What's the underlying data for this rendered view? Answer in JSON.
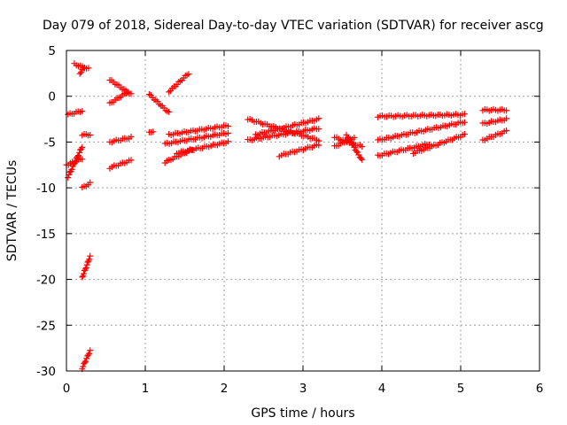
{
  "chart_data": {
    "type": "scatter",
    "title": "Day 079 of 2018, Sidereal Day-to-day VTEC variation (SDTVAR) for receiver ascg",
    "xlabel": "GPS time / hours",
    "ylabel": "SDTVAR / TECUs",
    "xlim": [
      0,
      6
    ],
    "ylim": [
      -30,
      5
    ],
    "xticks": [
      0,
      1,
      2,
      3,
      4,
      5,
      6
    ],
    "yticks": [
      5,
      0,
      -5,
      -10,
      -15,
      -20,
      -25,
      -30
    ],
    "grid": true,
    "marker": "+",
    "series_color": "#ff0000",
    "segments": [
      {
        "x0": 0.0,
        "x1": 0.2,
        "y0": -7.5,
        "y1": -6.8
      },
      {
        "x0": 0.02,
        "x1": 0.2,
        "y0": -8.8,
        "y1": -5.5
      },
      {
        "x0": 0.02,
        "x1": 0.2,
        "y0": -2.0,
        "y1": -1.6
      },
      {
        "x0": 0.1,
        "x1": 0.28,
        "y0": 3.5,
        "y1": 3.0
      },
      {
        "x0": 0.17,
        "x1": 0.23,
        "y0": 2.5,
        "y1": 3.2
      },
      {
        "x0": 0.2,
        "x1": 0.3,
        "y0": -4.2,
        "y1": -4.2
      },
      {
        "x0": 0.2,
        "x1": 0.3,
        "y0": -10.0,
        "y1": -9.5
      },
      {
        "x0": 0.2,
        "x1": 0.3,
        "y0": -19.8,
        "y1": -17.5
      },
      {
        "x0": 0.2,
        "x1": 0.3,
        "y0": -29.7,
        "y1": -27.8
      },
      {
        "x0": 0.55,
        "x1": 0.82,
        "y0": 1.8,
        "y1": 0.2
      },
      {
        "x0": 0.55,
        "x1": 0.78,
        "y0": -0.8,
        "y1": 0.5
      },
      {
        "x0": 0.55,
        "x1": 0.82,
        "y0": -5.0,
        "y1": -4.5
      },
      {
        "x0": 0.55,
        "x1": 0.82,
        "y0": -7.8,
        "y1": -7.0
      },
      {
        "x0": 1.05,
        "x1": 1.3,
        "y0": 0.2,
        "y1": -1.8
      },
      {
        "x0": 1.05,
        "x1": 1.1,
        "y0": -4.0,
        "y1": -3.8
      },
      {
        "x0": 1.3,
        "x1": 1.55,
        "y0": 0.5,
        "y1": 2.5
      },
      {
        "x0": 1.25,
        "x1": 1.6,
        "y0": -7.2,
        "y1": -5.8
      },
      {
        "x0": 1.25,
        "x1": 2.05,
        "y0": -5.2,
        "y1": -4.0
      },
      {
        "x0": 1.3,
        "x1": 2.05,
        "y0": -4.2,
        "y1": -3.2
      },
      {
        "x0": 1.4,
        "x1": 2.05,
        "y0": -6.2,
        "y1": -5.0
      },
      {
        "x0": 2.3,
        "x1": 3.2,
        "y0": -2.5,
        "y1": -4.8
      },
      {
        "x0": 2.3,
        "x1": 3.2,
        "y0": -4.8,
        "y1": -3.5
      },
      {
        "x0": 2.4,
        "x1": 3.2,
        "y0": -4.2,
        "y1": -2.5
      },
      {
        "x0": 2.7,
        "x1": 3.2,
        "y0": -6.5,
        "y1": -5.3
      },
      {
        "x0": 3.4,
        "x1": 3.75,
        "y0": -4.5,
        "y1": -5.5
      },
      {
        "x0": 3.4,
        "x1": 3.65,
        "y0": -5.5,
        "y1": -4.5
      },
      {
        "x0": 3.55,
        "x1": 3.75,
        "y0": -4.2,
        "y1": -7.0
      },
      {
        "x0": 3.95,
        "x1": 5.05,
        "y0": -2.2,
        "y1": -2.0
      },
      {
        "x0": 3.95,
        "x1": 5.05,
        "y0": -4.8,
        "y1": -2.8
      },
      {
        "x0": 3.95,
        "x1": 4.6,
        "y0": -6.5,
        "y1": -5.2
      },
      {
        "x0": 4.4,
        "x1": 5.05,
        "y0": -6.2,
        "y1": -4.2
      },
      {
        "x0": 5.28,
        "x1": 5.58,
        "y0": -1.5,
        "y1": -1.5
      },
      {
        "x0": 5.28,
        "x1": 5.58,
        "y0": -3.0,
        "y1": -2.5
      },
      {
        "x0": 5.28,
        "x1": 5.58,
        "y0": -4.8,
        "y1": -3.8
      }
    ]
  }
}
